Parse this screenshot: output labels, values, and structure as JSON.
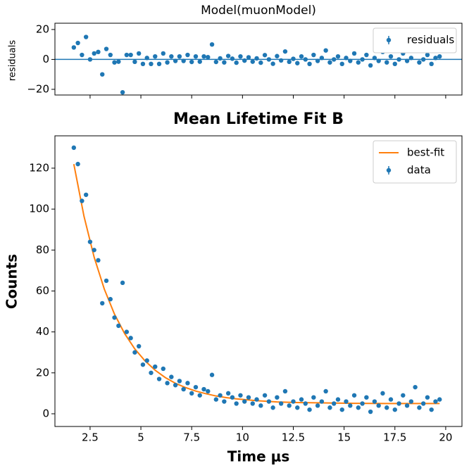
{
  "chart_data": [
    {
      "type": "scatter",
      "title": "Model(muonModel)",
      "ylabel": "residuals",
      "xlim": [
        0.77,
        20.8
      ],
      "xticks": [
        2.5,
        5.0,
        7.5,
        10.0,
        12.5,
        15.0,
        17.5,
        20.0
      ],
      "xtick_labels": false,
      "ylim": [
        -23.8,
        24.2
      ],
      "yticks": [
        {
          "value": -20,
          "label": "−20"
        },
        0,
        20
      ],
      "hline": 0,
      "legend": "upper right",
      "series": [
        {
          "name": "residuals",
          "color": "#1f77b4",
          "kind": "scatter",
          "x": [
            1.7,
            1.9,
            2.1,
            2.3,
            2.5,
            2.7,
            2.9,
            3.1,
            3.3,
            3.5,
            3.7,
            3.9,
            4.1,
            4.3,
            4.5,
            4.7,
            4.9,
            5.1,
            5.3,
            5.5,
            5.7,
            5.9,
            6.1,
            6.3,
            6.5,
            6.7,
            6.9,
            7.1,
            7.3,
            7.5,
            7.7,
            7.9,
            8.1,
            8.3,
            8.5,
            8.7,
            8.9,
            9.1,
            9.3,
            9.5,
            9.7,
            9.9,
            10.1,
            10.3,
            10.5,
            10.7,
            10.9,
            11.1,
            11.3,
            11.5,
            11.7,
            11.9,
            12.1,
            12.3,
            12.5,
            12.7,
            12.9,
            13.1,
            13.3,
            13.5,
            13.7,
            13.9,
            14.1,
            14.3,
            14.5,
            14.7,
            14.9,
            15.1,
            15.3,
            15.5,
            15.7,
            15.9,
            16.1,
            16.3,
            16.5,
            16.7,
            16.9,
            17.1,
            17.3,
            17.5,
            17.7,
            17.9,
            18.1,
            18.3,
            18.5,
            18.7,
            18.9,
            19.1,
            19.3,
            19.5,
            19.7
          ],
          "values": [
            8,
            11,
            3,
            15,
            0,
            4,
            5,
            -10,
            7,
            3,
            -2,
            -1.5,
            -22,
            3,
            3,
            -1.6,
            4,
            -3,
            1,
            -3,
            2,
            -3,
            4,
            -2,
            2,
            -1,
            2,
            -1,
            3,
            -1.7,
            2,
            -1.5,
            2,
            1.5,
            10,
            -1.7,
            0.7,
            -2,
            2.3,
            0.5,
            -2.2,
            2,
            -0.8,
            1.4,
            -1.5,
            0.7,
            -2.2,
            2.9,
            0,
            -2.9,
            2.2,
            -0.7,
            5.3,
            -1.6,
            0.4,
            -2.5,
            2,
            0,
            -3,
            3,
            -1,
            1,
            6,
            -2,
            0,
            2,
            -3,
            1,
            -1,
            4,
            -2,
            0,
            3,
            -4,
            1,
            -1,
            5,
            -2,
            2,
            -3,
            0,
            4,
            -1,
            1,
            8,
            -2,
            0,
            3,
            -3,
            1,
            2
          ]
        }
      ]
    },
    {
      "type": "scatter",
      "title": "Mean Lifetime Fit B",
      "xlabel": "Time μs",
      "ylabel": "Counts",
      "xlim": [
        0.77,
        20.8
      ],
      "xticks": [
        2.5,
        5.0,
        7.5,
        10.0,
        12.5,
        15.0,
        17.5,
        20.0
      ],
      "ylim": [
        -6.2,
        135.8
      ],
      "yticks": [
        0,
        20,
        40,
        60,
        80,
        100,
        120
      ],
      "legend": "upper right",
      "series": [
        {
          "name": "best-fit",
          "color": "#ff7f0e",
          "kind": "line",
          "x": [
            1.7,
            2.2,
            2.7,
            3.2,
            3.7,
            4.2,
            4.7,
            5.2,
            5.7,
            6.2,
            6.7,
            7.2,
            7.7,
            8.2,
            8.7,
            9.2,
            9.7,
            10.7,
            11.7,
            12.7,
            14,
            15.5,
            17,
            18.5,
            19.7
          ],
          "values": [
            122,
            96.5,
            76.5,
            60.9,
            48.7,
            39.2,
            31.7,
            25.9,
            21.3,
            17.7,
            14.9,
            12.8,
            11.1,
            9.8,
            8.7,
            7.9,
            7.3,
            6.4,
            5.8,
            5.5,
            5.3,
            5.1,
            5.0,
            5.0,
            5.0
          ]
        },
        {
          "name": "data",
          "color": "#1f77b4",
          "kind": "scatter",
          "x": [
            1.7,
            1.9,
            2.1,
            2.3,
            2.5,
            2.7,
            2.9,
            3.1,
            3.3,
            3.5,
            3.7,
            3.9,
            4.1,
            4.3,
            4.5,
            4.7,
            4.9,
            5.1,
            5.3,
            5.5,
            5.7,
            5.9,
            6.1,
            6.3,
            6.5,
            6.7,
            6.9,
            7.1,
            7.3,
            7.5,
            7.7,
            7.9,
            8.1,
            8.3,
            8.5,
            8.7,
            8.9,
            9.1,
            9.3,
            9.5,
            9.7,
            9.9,
            10.1,
            10.3,
            10.5,
            10.7,
            10.9,
            11.1,
            11.3,
            11.5,
            11.7,
            11.9,
            12.1,
            12.3,
            12.5,
            12.7,
            12.9,
            13.1,
            13.3,
            13.5,
            13.7,
            13.9,
            14.1,
            14.3,
            14.5,
            14.7,
            14.9,
            15.1,
            15.3,
            15.5,
            15.7,
            15.9,
            16.1,
            16.3,
            16.5,
            16.7,
            16.9,
            17.1,
            17.3,
            17.5,
            17.7,
            17.9,
            18.1,
            18.3,
            18.5,
            18.7,
            18.9,
            19.1,
            19.3,
            19.5,
            19.7
          ],
          "values": [
            130,
            122,
            104,
            107,
            84,
            80,
            75,
            54,
            65,
            56,
            47,
            43,
            64,
            40,
            37,
            30,
            33,
            24,
            26,
            20,
            23,
            17,
            22,
            15,
            18,
            14,
            16,
            12,
            15,
            10,
            13,
            9,
            12,
            11,
            19,
            7,
            9,
            6,
            10,
            8,
            5,
            9,
            6,
            8,
            5,
            7,
            4,
            9,
            6,
            3,
            8,
            5,
            11,
            4,
            6,
            3,
            7,
            5,
            2,
            8,
            4,
            6,
            11,
            3,
            5,
            7,
            2,
            6,
            4,
            9,
            3,
            5,
            8,
            1,
            6,
            4,
            10,
            3,
            7,
            2,
            5,
            9,
            4,
            6,
            13,
            3,
            5,
            8,
            2,
            6,
            7
          ]
        }
      ]
    }
  ]
}
